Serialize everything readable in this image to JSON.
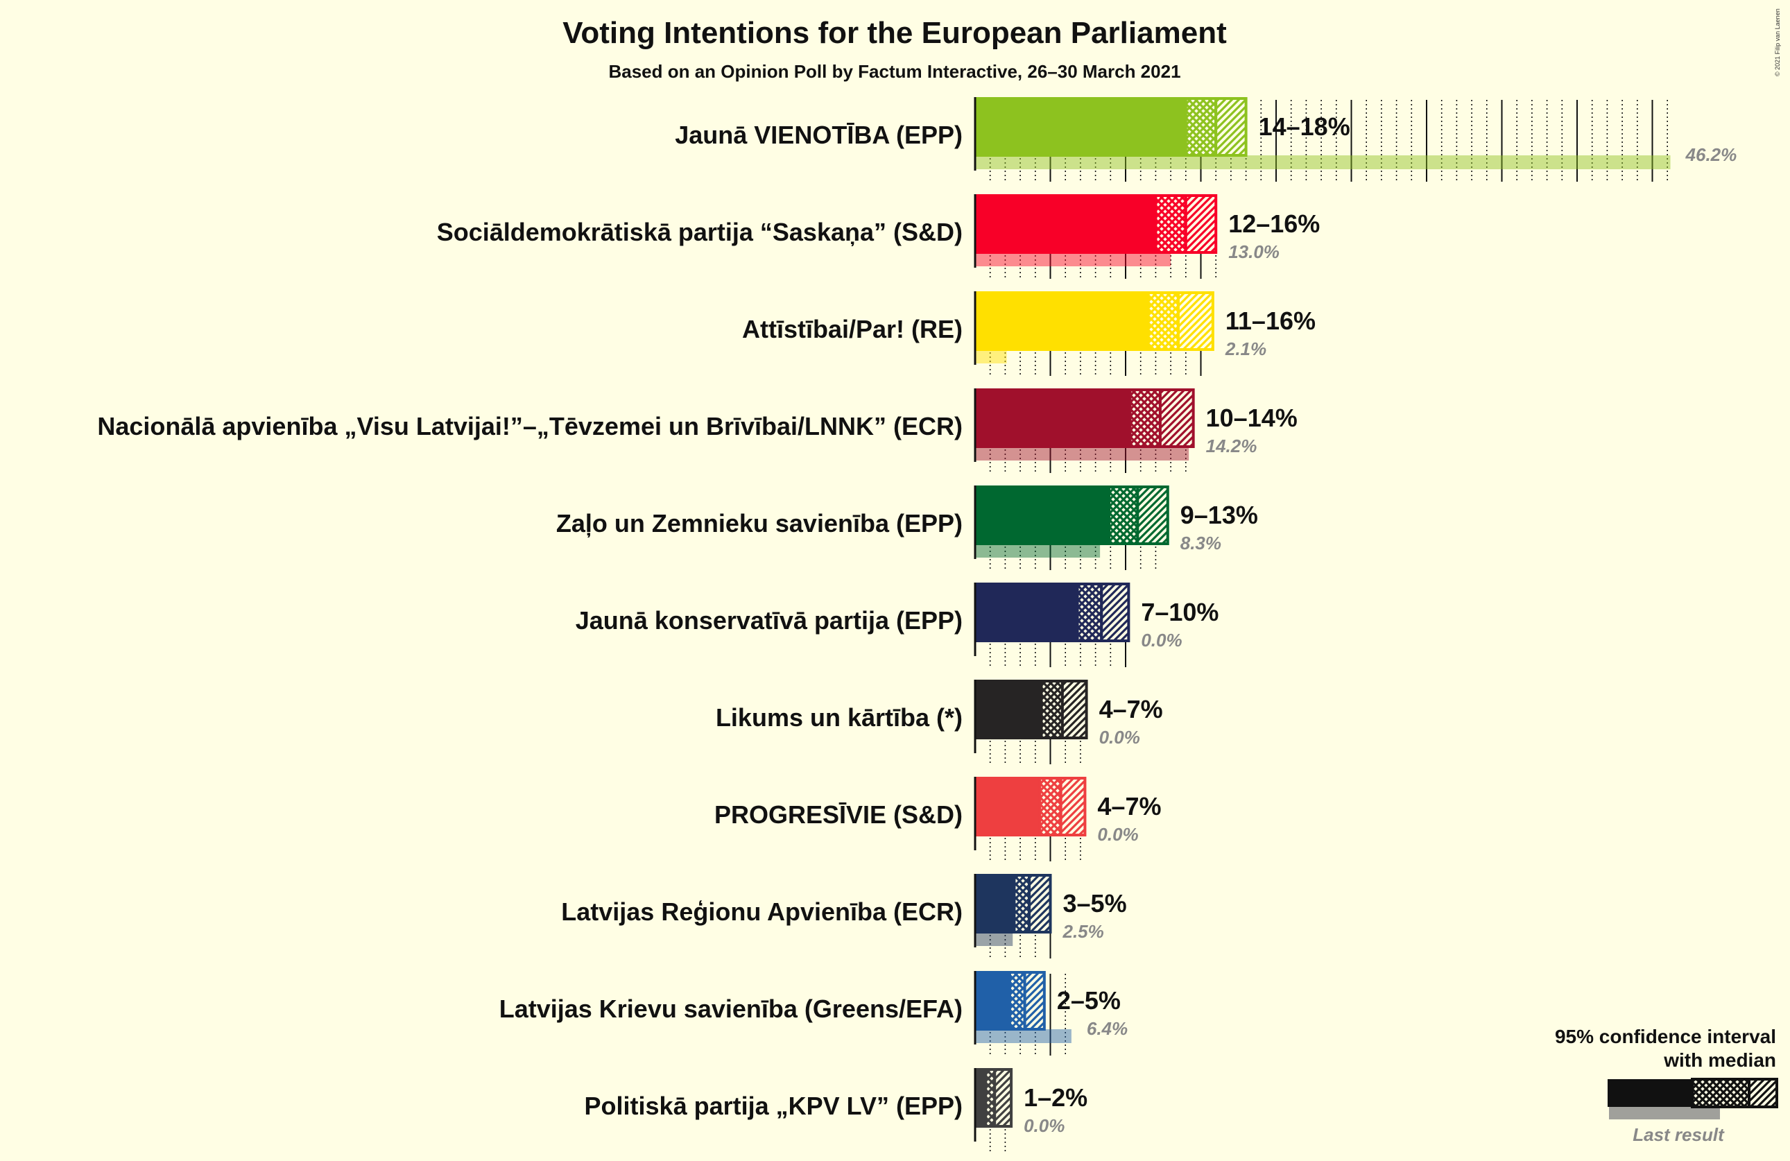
{
  "title": "Voting Intentions for the European Parliament",
  "subtitle": "Based on an Opinion Poll by Factum Interactive, 26–30 March 2021",
  "copyright": "© 2021 Filip van Laenen",
  "legend": {
    "line1": "95% confidence interval",
    "line2": "with median",
    "last_result": "Last result"
  },
  "chart_data": {
    "type": "bar",
    "orientation": "horizontal",
    "unit": "%",
    "series": [
      {
        "name": "Jaunā VIENOTĪBA (EPP)",
        "color": "#8DC21F",
        "ci_low": 14,
        "median": 16,
        "ci_high": 18,
        "range_label": "14–18%",
        "last": 46.2,
        "last_label": "46.2%"
      },
      {
        "name": "Sociāldemokrātiskā partija “Saskaņa” (S&D)",
        "color": "#F80028",
        "ci_low": 12,
        "median": 14,
        "ci_high": 16,
        "range_label": "12–16%",
        "last": 13.0,
        "last_label": "13.0%"
      },
      {
        "name": "Attīstībai/Par! (RE)",
        "color": "#FFE000",
        "ci_low": 11.5,
        "median": 13.5,
        "ci_high": 15.8,
        "range_label": "11–16%",
        "last": 2.1,
        "last_label": "2.1%"
      },
      {
        "name": "Nacionālā apvienība „Visu Latvijai!”–„Tēvzemei un Brīvībai/LNNK” (ECR)",
        "color": "#A0102C",
        "ci_low": 10.3,
        "median": 12.3,
        "ci_high": 14.5,
        "range_label": "10–14%",
        "last": 14.2,
        "last_label": "14.2%"
      },
      {
        "name": "Zaļo un Zemnieku savienība (EPP)",
        "color": "#006830",
        "ci_low": 8.9,
        "median": 10.8,
        "ci_high": 12.8,
        "range_label": "9–13%",
        "last": 8.3,
        "last_label": "8.3%"
      },
      {
        "name": "Jaunā konservatīvā partija (EPP)",
        "color": "#202858",
        "ci_low": 6.8,
        "median": 8.4,
        "ci_high": 10.2,
        "range_label": "7–10%",
        "last": 0.0,
        "last_label": "0.0%"
      },
      {
        "name": "Likums un kārtība (*)",
        "color": "#262424",
        "ci_low": 4.4,
        "median": 5.8,
        "ci_high": 7.4,
        "range_label": "4–7%",
        "last": 0.0,
        "last_label": "0.0%"
      },
      {
        "name": "PROGRESĪVIE (S&D)",
        "color": "#EE3F40",
        "ci_low": 4.3,
        "median": 5.7,
        "ci_high": 7.3,
        "range_label": "4–7%",
        "last": 0.0,
        "last_label": "0.0%"
      },
      {
        "name": "Latvijas Reģionu Apvienība (ECR)",
        "color": "#1E355E",
        "ci_low": 2.6,
        "median": 3.6,
        "ci_high": 5.0,
        "range_label": "3–5%",
        "last": 2.5,
        "last_label": "2.5%"
      },
      {
        "name": "Latvijas Krievu savienība (Greens/EFA)",
        "color": "#2060A8",
        "ci_low": 2.3,
        "median": 3.3,
        "ci_high": 4.6,
        "range_label": "2–5%",
        "last": 6.4,
        "last_label": "6.4%"
      },
      {
        "name": "Politiskā partija „KPV LV” (EPP)",
        "color": "#404040",
        "ci_low": 0.7,
        "median": 1.3,
        "ci_high": 2.4,
        "range_label": "1–2%",
        "last": 0.0,
        "last_label": "0.0%"
      }
    ],
    "xlim": [
      0,
      50
    ]
  }
}
